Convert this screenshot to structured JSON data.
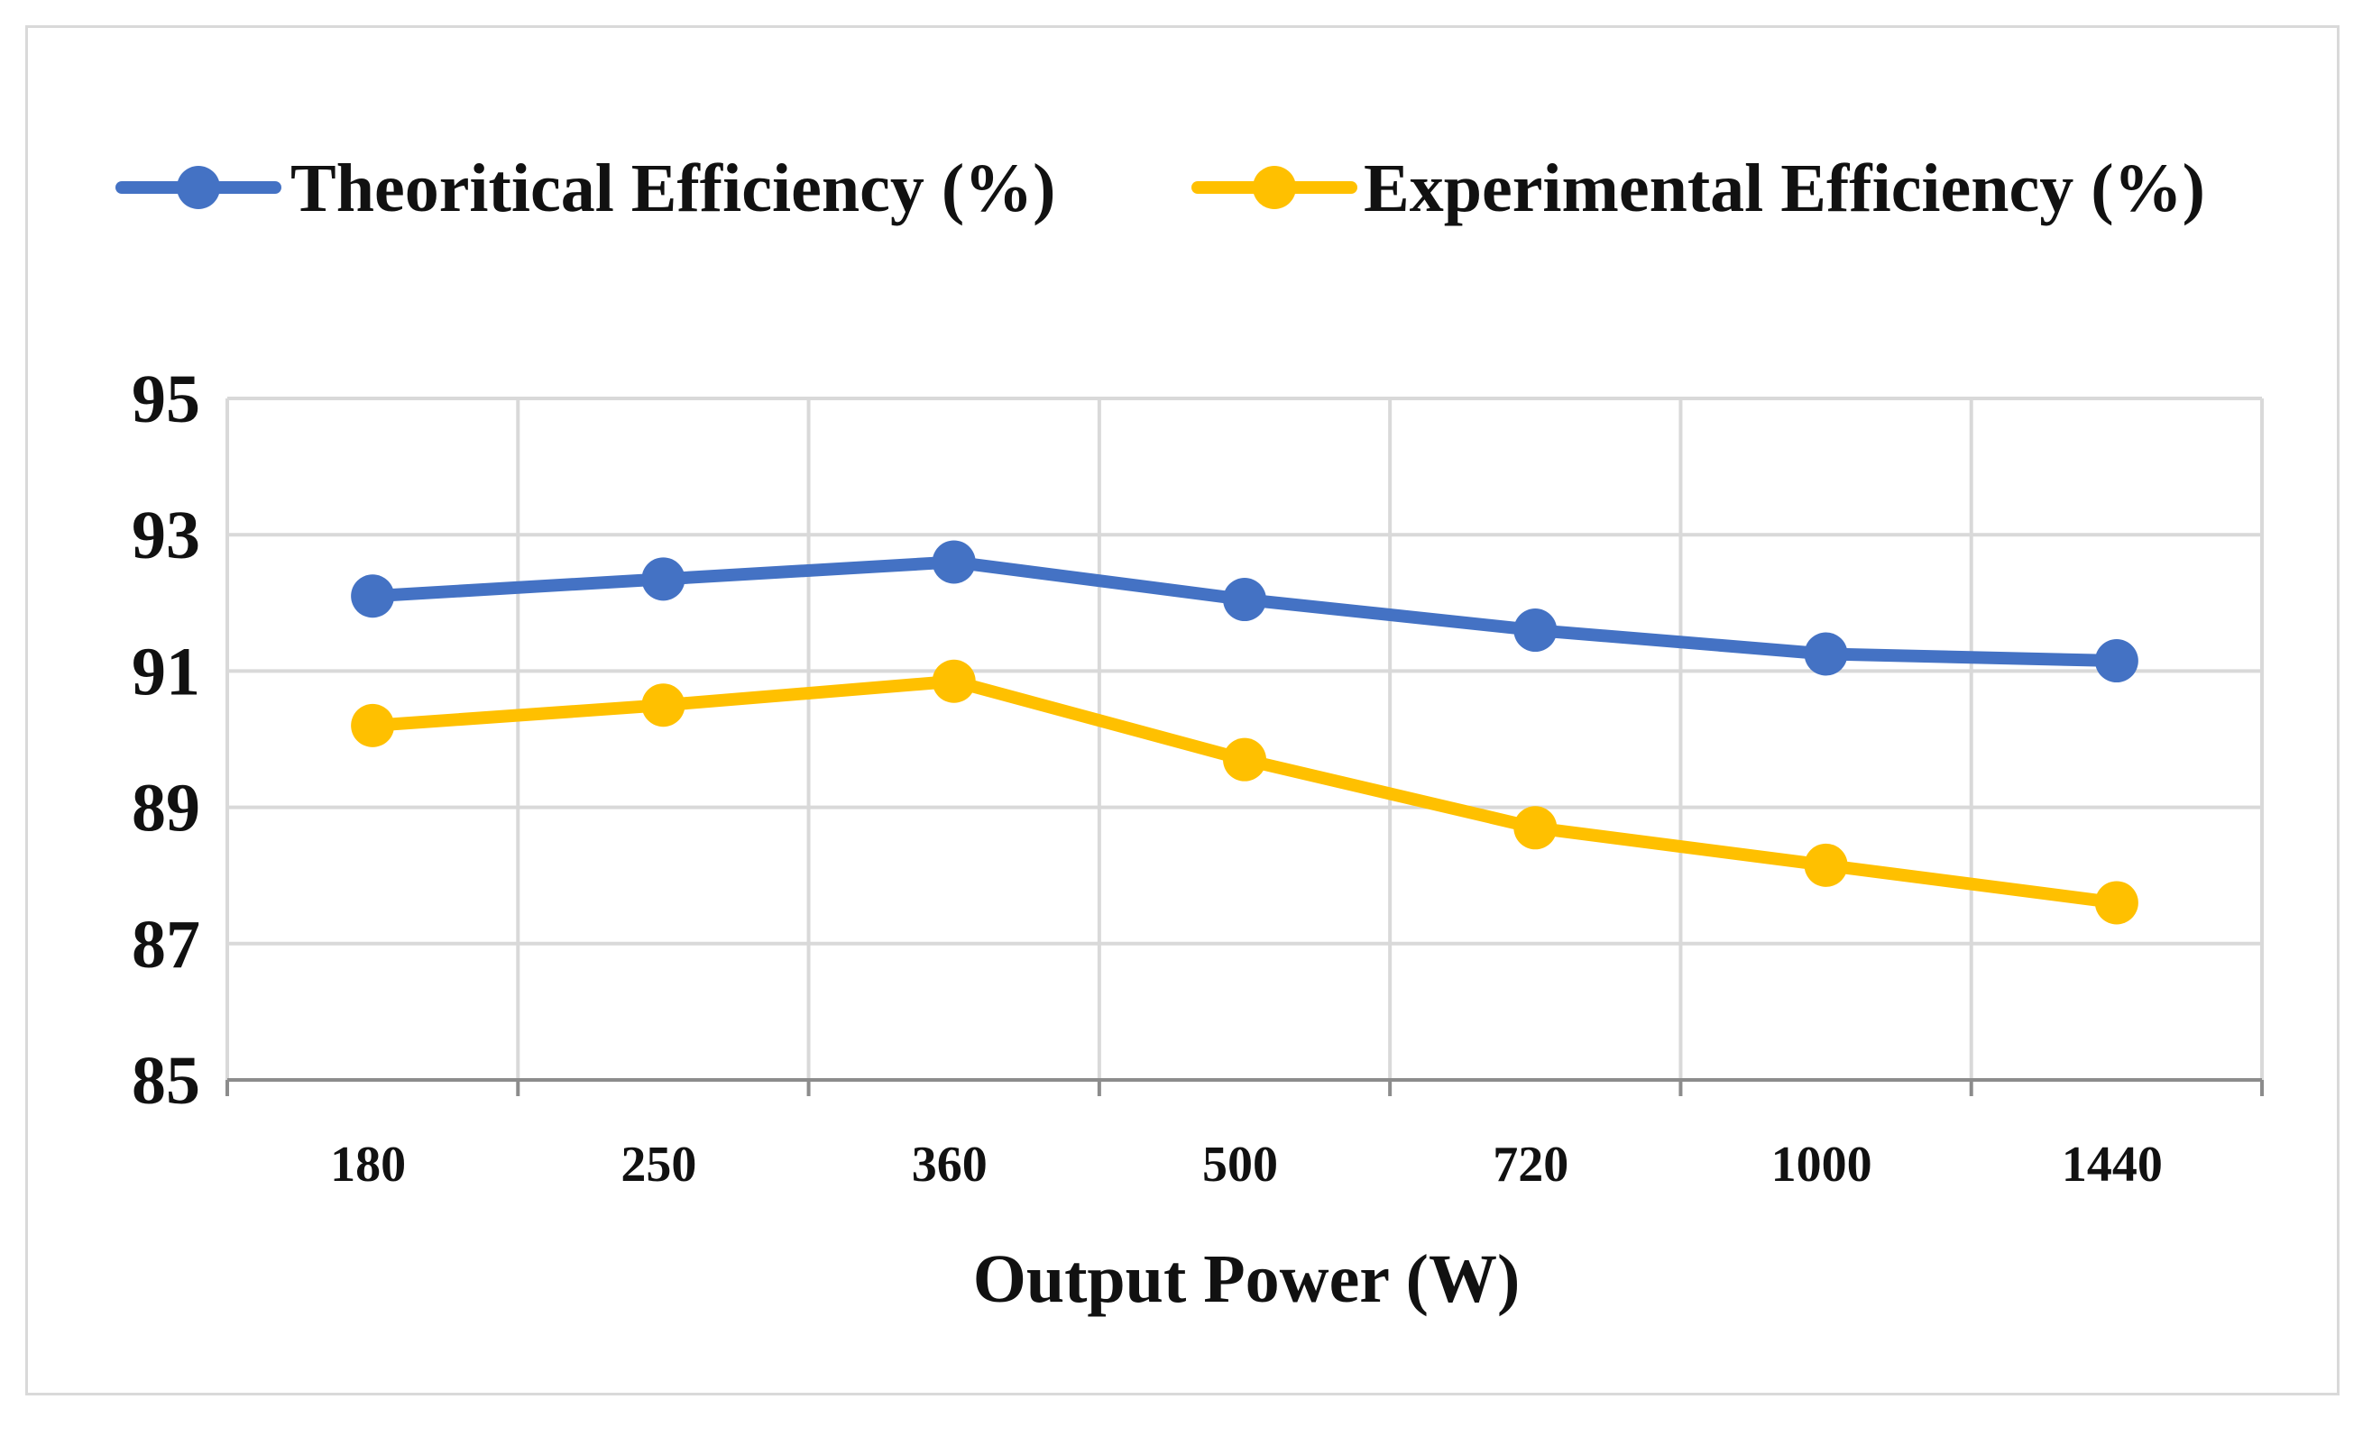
{
  "chart_data": {
    "type": "line",
    "title": "",
    "xlabel": "Output Power (W)",
    "ylabel": "",
    "categories": [
      "180",
      "250",
      "360",
      "500",
      "720",
      "1000",
      "1440"
    ],
    "ylim": [
      85,
      95
    ],
    "yticks": [
      85,
      87,
      89,
      91,
      93,
      95
    ],
    "grid": true,
    "legend_position": "top",
    "series": [
      {
        "name": "Theoritical Efficiency (%)",
        "color": "#4472C4",
        "values": [
          92.1,
          92.35,
          92.6,
          92.05,
          91.6,
          91.25,
          91.15
        ]
      },
      {
        "name": "Experimental Efficiency (%)",
        "color": "#FFC000",
        "values": [
          90.2,
          90.5,
          90.85,
          89.7,
          88.7,
          88.15,
          87.6
        ]
      }
    ]
  }
}
